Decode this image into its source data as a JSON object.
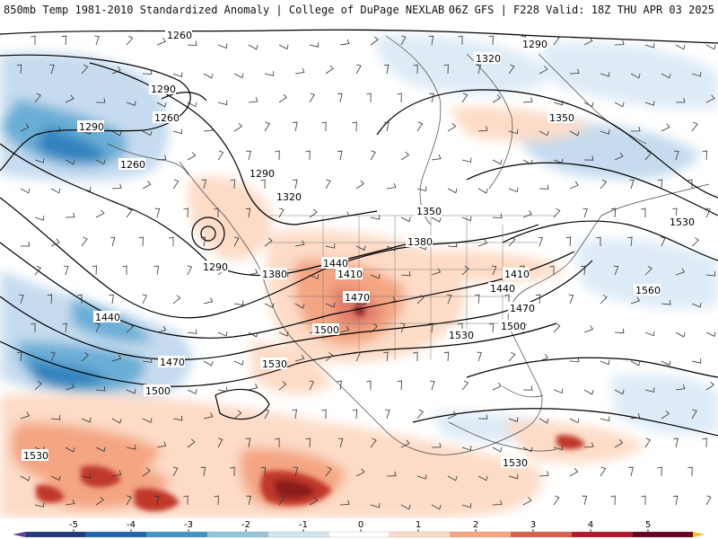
{
  "header": {
    "title_left": "850mb Temp 1981-2010 Standardized Anomaly | College of DuPage NEXLAB",
    "title_right": "06Z GFS | F228 Valid: 18Z THU APR 03 2025"
  },
  "map": {
    "field": "850mb temperature standardized anomaly",
    "overlays": [
      "geopotential height contours",
      "wind barbs",
      "coastlines",
      "state borders"
    ],
    "contour_labels": [
      "1260",
      "1290",
      "1320",
      "1350",
      "1290",
      "1260",
      "1290",
      "1260",
      "1290",
      "1320",
      "1290",
      "1350",
      "1380",
      "1380",
      "1440",
      "1410",
      "1470",
      "1410",
      "1440",
      "1470",
      "1500",
      "1500",
      "1530",
      "1530",
      "1440",
      "1470",
      "1500",
      "1530",
      "1530",
      "1560",
      "1530"
    ]
  },
  "colorbar": {
    "ticks": [
      "-5",
      "-4",
      "-3",
      "-2",
      "-1",
      "0",
      "1",
      "2",
      "3",
      "4",
      "5"
    ],
    "colors": [
      "#6a3d9a",
      "#1f3b7a",
      "#2166ac",
      "#4393c3",
      "#92c5de",
      "#d1e5f0",
      "#ffffff",
      "#fddbc7",
      "#f4a582",
      "#d6604d",
      "#b2182b",
      "#67001f",
      "#f0c020"
    ]
  }
}
